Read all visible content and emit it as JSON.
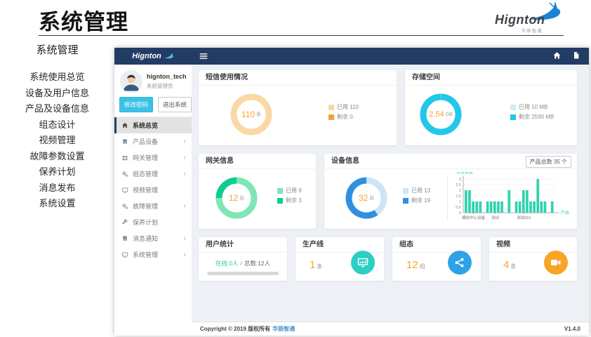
{
  "page": {
    "title": "系统管理",
    "logo": {
      "name": "Hignton",
      "subtitle": "华辰智通"
    },
    "left_menu": {
      "heading": "系统管理",
      "items": [
        "系统使用总览",
        "设备及用户信息",
        "产品及设备信息",
        "组态设计",
        "视频管理",
        "故障参数设置",
        "保养计划",
        "消息发布",
        "系统设置"
      ]
    }
  },
  "dashboard": {
    "logo_text": "Hignton",
    "navbar": {
      "icons": [
        "menu-icon",
        "home-icon",
        "file-icon"
      ]
    },
    "user": {
      "name": "hignton_tech",
      "role": "系统管理员"
    },
    "actions": {
      "change_password": "修改密码",
      "logout": "退出系统"
    },
    "menu": [
      {
        "label": "系统总览",
        "icon": "home-icon",
        "active": true,
        "expandable": false
      },
      {
        "label": "产品设备",
        "icon": "book-icon",
        "active": false,
        "expandable": true
      },
      {
        "label": "网关管理",
        "icon": "grid-icon",
        "active": false,
        "expandable": true
      },
      {
        "label": "组态管理",
        "icon": "cogs-icon",
        "active": false,
        "expandable": true
      },
      {
        "label": "视频管理",
        "icon": "monitor-icon",
        "active": false,
        "expandable": false
      },
      {
        "label": "故障管理",
        "icon": "cogs-icon",
        "active": false,
        "expandable": true
      },
      {
        "label": "保养计划",
        "icon": "wrench-icon",
        "active": false,
        "expandable": false
      },
      {
        "label": "消息通知",
        "icon": "book-icon",
        "active": false,
        "expandable": true
      },
      {
        "label": "系统管理",
        "icon": "monitor-icon",
        "active": false,
        "expandable": true
      }
    ],
    "cards": {
      "sms": {
        "title": "短信使用情况"
      },
      "storage": {
        "title": "存储空间"
      },
      "gateway": {
        "title": "网关信息"
      },
      "device": {
        "title": "设备信息",
        "badge": "产品总数 35 个"
      },
      "users": {
        "title": "用户统计",
        "online": "在线:0人",
        "sep": "/",
        "total": "总数:12人"
      },
      "line": {
        "title": "生产线",
        "value": "1",
        "unit": "条",
        "icon": "monitor-chart-icon",
        "color": "#2bcfc4"
      },
      "config": {
        "title": "组态",
        "value": "12",
        "unit": "组",
        "icon": "share-nodes-icon",
        "color": "#2da2e8"
      },
      "video": {
        "title": "视频",
        "value": "4",
        "unit": "条",
        "icon": "video-camera-icon",
        "color": "#f8a427"
      }
    },
    "footer": {
      "copyright": "Copyright © 2019 版权所有",
      "company": "华辰智通",
      "version": "V1.4.0"
    }
  },
  "chart_data": [
    {
      "id": "sms",
      "type": "donut",
      "title": "短信使用情况",
      "center": {
        "value": "110",
        "unit": "条"
      },
      "segments": [
        {
          "label": "已用 110",
          "value": 110,
          "color": "#fad8a6"
        },
        {
          "label": "剩余 0",
          "value": 0,
          "color": "#f0a03c"
        }
      ]
    },
    {
      "id": "storage",
      "type": "donut",
      "title": "存储空间",
      "center": {
        "value": "2.54",
        "unit": "GB"
      },
      "segments": [
        {
          "label": "已用 10 MB",
          "value": 10,
          "color": "#cfedf8"
        },
        {
          "label": "剩余 2590 MB",
          "value": 2590,
          "color": "#23c7ea"
        }
      ]
    },
    {
      "id": "gateway",
      "type": "donut",
      "title": "网关信息",
      "center": {
        "value": "12",
        "unit": "台"
      },
      "segments": [
        {
          "label": "已用 9",
          "value": 9,
          "color": "#7fe6b4"
        },
        {
          "label": "剩余 3",
          "value": 3,
          "color": "#0fcc90"
        }
      ]
    },
    {
      "id": "device",
      "type": "donut",
      "title": "设备信息",
      "center": {
        "value": "32",
        "unit": "台"
      },
      "segments": [
        {
          "label": "已用 13",
          "value": 13,
          "color": "#cfe5f7"
        },
        {
          "label": "剩余 19",
          "value": 19,
          "color": "#3090e0"
        }
      ]
    },
    {
      "id": "products",
      "type": "bar",
      "title": "设备数量按产品",
      "ylabel": "设备数量",
      "xlabel": "产品",
      "ylim": [
        0,
        3
      ],
      "yticks": [
        0,
        0.5,
        1,
        1.5,
        2,
        2.5,
        3
      ],
      "values": [
        2,
        2,
        1,
        1,
        1,
        0,
        1,
        1,
        1,
        1,
        1,
        0,
        2,
        0,
        1,
        1,
        2,
        2,
        1,
        1,
        3,
        1,
        1,
        0,
        1
      ],
      "xticks": [
        {
          "label": "模拟中心设备",
          "pos": 2
        },
        {
          "label": "测试",
          "pos": 8
        },
        {
          "label": "测试001",
          "pos": 16
        }
      ],
      "bar_color": "#2ed3ae",
      "grid": true,
      "legend": "none"
    }
  ],
  "colors": {
    "navbar": "#223c64",
    "accent_orange": "#f7a52a",
    "link_blue": "#3a8fc8",
    "online_green": "#2dce89",
    "bar_teal": "#2ed3ae",
    "button_cyan": "#3bc2e6"
  }
}
